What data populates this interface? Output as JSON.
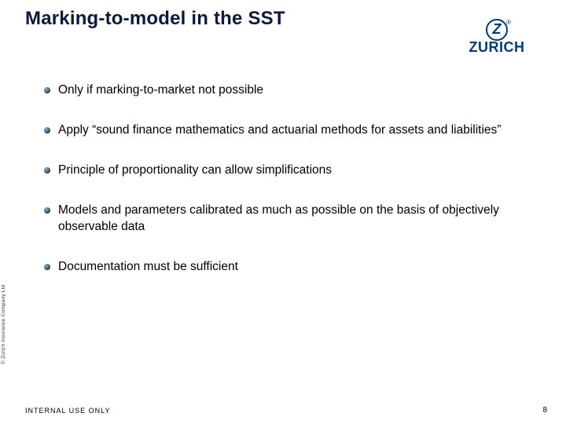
{
  "title": "Marking-to-model in the SST",
  "logo": {
    "letter": "Z",
    "word": "ZURICH",
    "reg": "®",
    "color": "#003a70"
  },
  "bullets": [
    "Only if marking-to-market not possible",
    "Apply “sound finance mathematics and actuarial methods for assets and liabilities”",
    "Principle of proportionality can allow simplifications",
    "Models and parameters calibrated as much as possible on the basis of objectively observable data",
    "Documentation must be sufficient"
  ],
  "copyright": "© Zurich Insurance Company Ltd",
  "footer_left": "INTERNAL USE ONLY",
  "page_number": "8",
  "colors": {
    "title_color": "#0d1a3a",
    "text_color": "#000000",
    "bullet_dot": "#4a6b82",
    "background": "#ffffff"
  },
  "typography": {
    "title_fontsize": 24,
    "body_fontsize": 15.5,
    "footer_fontsize": 9,
    "copyright_fontsize": 6.5
  }
}
